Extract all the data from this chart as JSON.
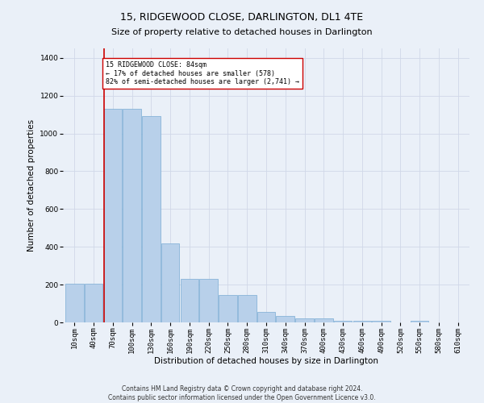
{
  "title": "15, RIDGEWOOD CLOSE, DARLINGTON, DL1 4TE",
  "subtitle": "Size of property relative to detached houses in Darlington",
  "xlabel": "Distribution of detached houses by size in Darlington",
  "ylabel": "Number of detached properties",
  "footer_line1": "Contains HM Land Registry data © Crown copyright and database right 2024.",
  "footer_line2": "Contains public sector information licensed under the Open Government Licence v3.0.",
  "categories": [
    "10sqm",
    "40sqm",
    "70sqm",
    "100sqm",
    "130sqm",
    "160sqm",
    "190sqm",
    "220sqm",
    "250sqm",
    "280sqm",
    "310sqm",
    "340sqm",
    "370sqm",
    "400sqm",
    "430sqm",
    "460sqm",
    "490sqm",
    "520sqm",
    "550sqm",
    "580sqm",
    "610sqm"
  ],
  "values": [
    205,
    205,
    1130,
    1130,
    1090,
    420,
    230,
    230,
    145,
    145,
    55,
    35,
    20,
    20,
    10,
    10,
    10,
    0,
    10,
    0,
    0
  ],
  "bar_color": "#b8d0ea",
  "bar_edge_color": "#7aacd4",
  "vline_x_idx": 2,
  "vline_color": "#cc0000",
  "annotation_text": "15 RIDGEWOOD CLOSE: 84sqm\n← 17% of detached houses are smaller (578)\n82% of semi-detached houses are larger (2,741) →",
  "annotation_box_color": "#ffffff",
  "annotation_box_edge": "#cc0000",
  "ylim": [
    0,
    1450
  ],
  "yticks": [
    0,
    200,
    400,
    600,
    800,
    1000,
    1200,
    1400
  ],
  "grid_color": "#d0d8e8",
  "background_color": "#eaf0f8",
  "title_fontsize": 9,
  "label_fontsize": 7.5,
  "tick_fontsize": 6.5,
  "footer_fontsize": 5.5,
  "annotation_fontsize": 6.0
}
